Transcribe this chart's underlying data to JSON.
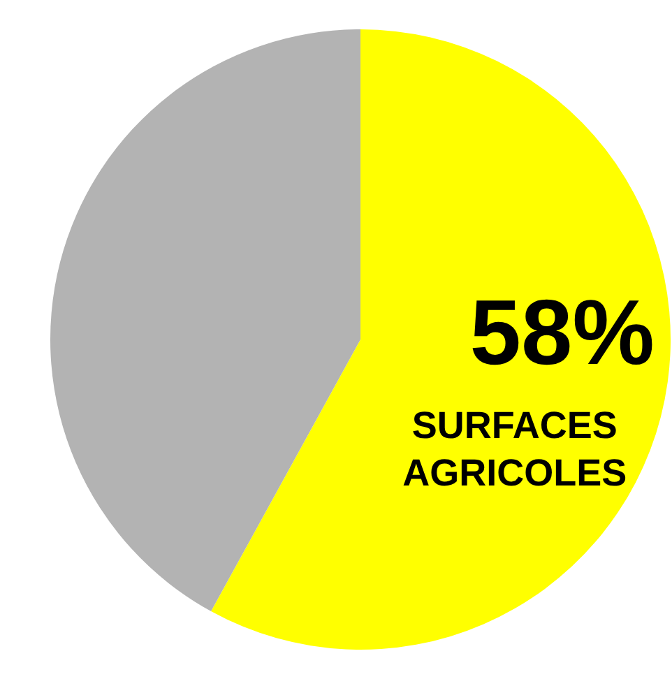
{
  "chart_data": {
    "type": "pie",
    "categories": [
      "SURFACES AGRICOLES",
      null
    ],
    "values": [
      58,
      42
    ],
    "colors": [
      "#ffff00",
      "#b3b3b3"
    ],
    "value_labels": [
      "58%",
      null
    ],
    "legend": false
  }
}
